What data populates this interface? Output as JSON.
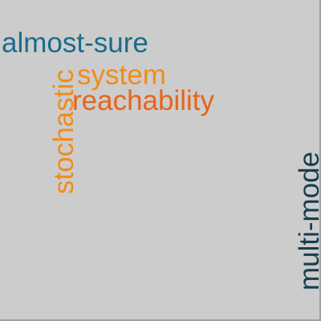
{
  "background_color": "#cccccc",
  "words": {
    "almost_sure": {
      "text": "almost-sure",
      "color": "#1a6b8a"
    },
    "system": {
      "text": "system",
      "color": "#f08c1a"
    },
    "reachability": {
      "text": "reachability",
      "color": "#e8641a"
    },
    "stochastic": {
      "text": "stochastic",
      "color": "#f08c1a"
    },
    "multi_mode": {
      "text": "multi-mode",
      "color": "#173d4f"
    }
  }
}
